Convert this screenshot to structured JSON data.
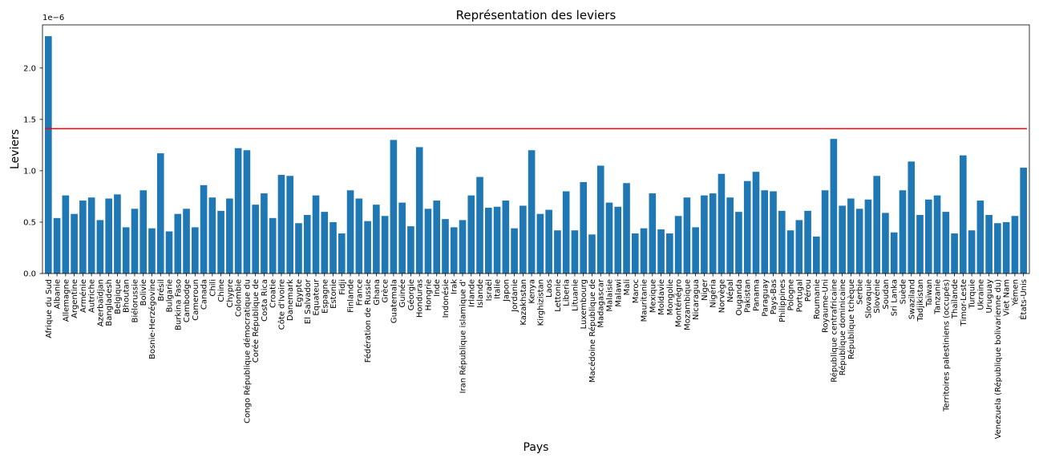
{
  "chart_data": {
    "type": "bar",
    "title": "Représentation des leviers",
    "xlabel": "Pays",
    "ylabel": "Leviers",
    "y_offset_label": "1e−6",
    "y_scale_exponent": -6,
    "ylim": [
      0,
      2.42
    ],
    "yticks": [
      0.0,
      0.5,
      1.0,
      1.5,
      2.0
    ],
    "ytick_labels": [
      "0.0",
      "0.5",
      "1.0",
      "1.5",
      "2.0"
    ],
    "bar_color": "#1f77b4",
    "threshold_line": {
      "value": 1.41,
      "color": "#ff0000"
    },
    "grid": false,
    "categories": [
      "Afrique du Sud",
      "Albanie",
      "Allemagne",
      "Argentine",
      "Arménie",
      "Autriche",
      "Azerbaïdjan",
      "Bangladesh",
      "Belgique",
      "Bhoutan",
      "Biélorussie",
      "Bolivie",
      "Bosnie-Herzégovine",
      "Brésil",
      "Bulgarie",
      "Burkina Faso",
      "Cambodge",
      "Cameroun",
      "Canada",
      "Chili",
      "Chine",
      "Chypre",
      "Colombie",
      "Congo République démocratique du",
      "Corée République de",
      "Costa Rica",
      "Croatie",
      "Côte d'Ivoire",
      "Danemark",
      "Egypte",
      "El Salvador",
      "Equateur",
      "Espagne",
      "Estonie",
      "Fidji",
      "Finlande",
      "France",
      "Fédération de Russie",
      "Ghana",
      "Grèce",
      "Guatemala",
      "Guinée",
      "Géorgie",
      "Honduras",
      "Hongrie",
      "Inde",
      "Indonésie",
      "Irak",
      "Iran République islamique d'",
      "Irlande",
      "Islande",
      "Israël",
      "Italie",
      "Japon",
      "Jordanie",
      "Kazakhstan",
      "Kenya",
      "Kirghizistan",
      "Laos",
      "Lettonie",
      "Liberia",
      "Lituanie",
      "Luxembourg",
      "Macédoine République de",
      "Madagascar",
      "Malaisie",
      "Malawi",
      "Mali",
      "Maroc",
      "Mauritanie",
      "Mexique",
      "Moldavie",
      "Mongolie",
      "Monténégro",
      "Mozambique",
      "Nicaragua",
      "Niger",
      "Nigéria",
      "Norvège",
      "Népal",
      "Ouganda",
      "Pakistan",
      "Panama",
      "Paraguay",
      "Pays-Bas",
      "Philippines",
      "Pologne",
      "Portugal",
      "Pérou",
      "Roumanie",
      "Royaume-Uni",
      "République centrafricaine",
      "République dominicaine",
      "République tchèque",
      "Serbie",
      "Slovaquie",
      "Slovénie",
      "Soudan",
      "Sri Lanka",
      "Suède",
      "Swaziland",
      "Tadjikistan",
      "Taïwan",
      "Tanzanie",
      "Territoires palestiniens (occupés)",
      "Thaïlande",
      "Timor-Leste",
      "Turquie",
      "Ukraine",
      "Uruguay",
      "Venezuela (République bolivarienne du)",
      "Viet Nam",
      "Yémen",
      "États-Unis"
    ],
    "values": [
      2.31,
      0.54,
      0.76,
      0.58,
      0.71,
      0.74,
      0.52,
      0.73,
      0.77,
      0.45,
      0.63,
      0.81,
      0.44,
      1.17,
      0.41,
      0.58,
      0.63,
      0.45,
      0.86,
      0.74,
      0.61,
      0.73,
      1.22,
      1.2,
      0.67,
      0.78,
      0.54,
      0.96,
      0.95,
      0.49,
      0.57,
      0.76,
      0.6,
      0.5,
      0.39,
      0.81,
      0.73,
      0.51,
      0.67,
      0.56,
      1.3,
      0.69,
      0.46,
      1.23,
      0.63,
      0.71,
      0.53,
      0.45,
      0.52,
      0.76,
      0.94,
      0.64,
      0.65,
      0.71,
      0.44,
      0.66,
      1.2,
      0.58,
      0.62,
      0.42,
      0.8,
      0.42,
      0.89,
      0.38,
      1.05,
      0.69,
      0.65,
      0.88,
      0.39,
      0.44,
      0.78,
      0.43,
      0.39,
      0.56,
      0.74,
      0.45,
      0.76,
      0.78,
      0.97,
      0.74,
      0.6,
      0.9,
      0.99,
      0.81,
      0.8,
      0.61,
      0.42,
      0.52,
      0.61,
      0.36,
      0.81,
      1.31,
      0.66,
      0.73,
      0.63,
      0.72,
      0.95,
      0.59,
      0.4,
      0.81,
      1.09,
      0.57,
      0.72,
      0.76,
      0.6,
      0.39,
      1.15,
      0.42,
      0.71,
      0.57,
      0.49,
      0.5,
      0.56,
      1.03
    ]
  }
}
